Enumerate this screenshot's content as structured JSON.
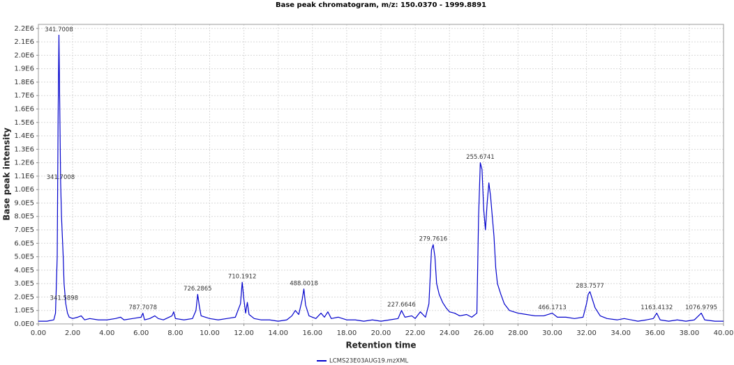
{
  "chart_data": {
    "type": "line",
    "title": "Base peak chromatogram, m/z: 150.0370 - 1999.8891",
    "x_label": "Retention time",
    "y_label": "Base peak intensity",
    "xlim": [
      0,
      40
    ],
    "ylim": [
      0,
      2230000
    ],
    "grid": true,
    "legend": "bottom",
    "xticks": [
      {
        "value": 0,
        "label": "0.00"
      },
      {
        "value": 2,
        "label": "2.00"
      },
      {
        "value": 4,
        "label": "4.00"
      },
      {
        "value": 6,
        "label": "6.00"
      },
      {
        "value": 8,
        "label": "8.00"
      },
      {
        "value": 10,
        "label": "10.00"
      },
      {
        "value": 12,
        "label": "12.00"
      },
      {
        "value": 14,
        "label": "14.00"
      },
      {
        "value": 16,
        "label": "16.00"
      },
      {
        "value": 18,
        "label": "18.00"
      },
      {
        "value": 20,
        "label": "20.00"
      },
      {
        "value": 22,
        "label": "22.00"
      },
      {
        "value": 24,
        "label": "24.00"
      },
      {
        "value": 26,
        "label": "26.00"
      },
      {
        "value": 28,
        "label": "28.00"
      },
      {
        "value": 30,
        "label": "30.00"
      },
      {
        "value": 32,
        "label": "32.00"
      },
      {
        "value": 34,
        "label": "34.00"
      },
      {
        "value": 36,
        "label": "36.00"
      },
      {
        "value": 38,
        "label": "38.00"
      },
      {
        "value": 40,
        "label": "40.00"
      }
    ],
    "yticks": [
      {
        "value": 0,
        "label": "0.0E0"
      },
      {
        "value": 100000,
        "label": "1.0E5"
      },
      {
        "value": 200000,
        "label": "2.0E5"
      },
      {
        "value": 300000,
        "label": "3.0E5"
      },
      {
        "value": 400000,
        "label": "4.0E5"
      },
      {
        "value": 500000,
        "label": "5.0E5"
      },
      {
        "value": 600000,
        "label": "6.0E5"
      },
      {
        "value": 700000,
        "label": "7.0E5"
      },
      {
        "value": 800000,
        "label": "8.0E5"
      },
      {
        "value": 900000,
        "label": "9.0E5"
      },
      {
        "value": 1000000,
        "label": "1.0E6"
      },
      {
        "value": 1100000,
        "label": "1.1E6"
      },
      {
        "value": 1200000,
        "label": "1.2E6"
      },
      {
        "value": 1300000,
        "label": "1.3E6"
      },
      {
        "value": 1400000,
        "label": "1.4E6"
      },
      {
        "value": 1500000,
        "label": "1.5E6"
      },
      {
        "value": 1600000,
        "label": "1.6E6"
      },
      {
        "value": 1700000,
        "label": "1.7E6"
      },
      {
        "value": 1800000,
        "label": "1.8E6"
      },
      {
        "value": 1900000,
        "label": "1.9E6"
      },
      {
        "value": 2000000,
        "label": "2.0E6"
      },
      {
        "value": 2100000,
        "label": "2.1E6"
      },
      {
        "value": 2200000,
        "label": "2.2E6"
      }
    ],
    "x": [
      0,
      0.5,
      0.9,
      1.0,
      1.1,
      1.15,
      1.2,
      1.25,
      1.3,
      1.35,
      1.4,
      1.45,
      1.5,
      1.6,
      1.7,
      1.8,
      2.0,
      2.3,
      2.5,
      2.7,
      3.0,
      3.5,
      4.0,
      4.5,
      4.8,
      5.0,
      5.5,
      6.0,
      6.1,
      6.2,
      6.5,
      6.8,
      7.0,
      7.3,
      7.8,
      7.9,
      8.0,
      8.5,
      9.0,
      9.2,
      9.3,
      9.4,
      9.5,
      10.0,
      10.5,
      11.0,
      11.5,
      11.8,
      11.9,
      12.0,
      12.1,
      12.2,
      12.3,
      12.6,
      13.0,
      13.5,
      14.0,
      14.5,
      14.8,
      15.0,
      15.2,
      15.4,
      15.5,
      15.6,
      15.8,
      16.2,
      16.5,
      16.7,
      16.9,
      17.1,
      17.5,
      18.0,
      18.5,
      19.0,
      19.5,
      20.0,
      20.5,
      21.0,
      21.2,
      21.4,
      21.8,
      22.0,
      22.3,
      22.6,
      22.8,
      22.95,
      23.05,
      23.15,
      23.25,
      23.4,
      23.6,
      23.8,
      24.0,
      24.3,
      24.6,
      25.0,
      25.3,
      25.6,
      25.7,
      25.8,
      25.9,
      26.0,
      26.1,
      26.2,
      26.3,
      26.4,
      26.5,
      26.6,
      26.7,
      26.8,
      27.0,
      27.2,
      27.5,
      28.0,
      28.5,
      29.0,
      29.5,
      30.0,
      30.3,
      30.8,
      31.3,
      31.8,
      32.0,
      32.1,
      32.2,
      32.3,
      32.5,
      32.8,
      33.2,
      33.8,
      34.2,
      34.6,
      35.0,
      35.5,
      35.9,
      36.1,
      36.3,
      36.8,
      37.3,
      37.8,
      38.3,
      38.7,
      38.9,
      39.5,
      40.0
    ],
    "series": [
      {
        "name": "LCMS23E03AUG19.mzXML",
        "color": "#0000cc",
        "values": [
          20000,
          20000,
          30000,
          80000,
          500000,
          1500000,
          2150000,
          1600000,
          1050000,
          800000,
          650000,
          500000,
          300000,
          150000,
          80000,
          50000,
          40000,
          50000,
          60000,
          30000,
          40000,
          30000,
          30000,
          40000,
          50000,
          30000,
          40000,
          50000,
          80000,
          30000,
          40000,
          60000,
          40000,
          30000,
          60000,
          90000,
          40000,
          30000,
          40000,
          100000,
          220000,
          130000,
          60000,
          40000,
          30000,
          40000,
          50000,
          150000,
          310000,
          180000,
          80000,
          160000,
          70000,
          40000,
          30000,
          30000,
          20000,
          30000,
          60000,
          100000,
          70000,
          180000,
          260000,
          140000,
          60000,
          40000,
          80000,
          50000,
          90000,
          40000,
          50000,
          30000,
          30000,
          20000,
          30000,
          20000,
          30000,
          40000,
          100000,
          50000,
          60000,
          40000,
          90000,
          50000,
          150000,
          550000,
          590000,
          500000,
          300000,
          220000,
          160000,
          120000,
          90000,
          80000,
          60000,
          70000,
          50000,
          80000,
          800000,
          1200000,
          1150000,
          850000,
          700000,
          900000,
          1050000,
          950000,
          800000,
          650000,
          420000,
          300000,
          220000,
          150000,
          100000,
          80000,
          70000,
          60000,
          60000,
          80000,
          50000,
          50000,
          40000,
          50000,
          150000,
          220000,
          240000,
          200000,
          120000,
          60000,
          40000,
          30000,
          40000,
          30000,
          20000,
          30000,
          40000,
          80000,
          30000,
          20000,
          30000,
          20000,
          30000,
          80000,
          30000,
          20000,
          20000
        ]
      }
    ],
    "annotations": [
      {
        "text": "341.7008",
        "x": 1.2,
        "y": 2150000
      },
      {
        "text": "341.7008",
        "x": 1.3,
        "y": 1050000
      },
      {
        "text": "341.5898",
        "x": 1.5,
        "y": 150000
      },
      {
        "text": "787.7078",
        "x": 6.1,
        "y": 80000
      },
      {
        "text": "726.2865",
        "x": 9.3,
        "y": 220000
      },
      {
        "text": "710.1912",
        "x": 11.9,
        "y": 310000
      },
      {
        "text": "488.0018",
        "x": 15.5,
        "y": 260000
      },
      {
        "text": "227.6646",
        "x": 21.2,
        "y": 100000
      },
      {
        "text": "279.7616",
        "x": 23.05,
        "y": 590000
      },
      {
        "text": "255.6741",
        "x": 25.8,
        "y": 1200000
      },
      {
        "text": "466.1713",
        "x": 30.0,
        "y": 80000
      },
      {
        "text": "283.7577",
        "x": 32.2,
        "y": 240000
      },
      {
        "text": "1163.4132",
        "x": 36.1,
        "y": 80000
      },
      {
        "text": "1076.9795",
        "x": 38.7,
        "y": 80000
      }
    ]
  }
}
